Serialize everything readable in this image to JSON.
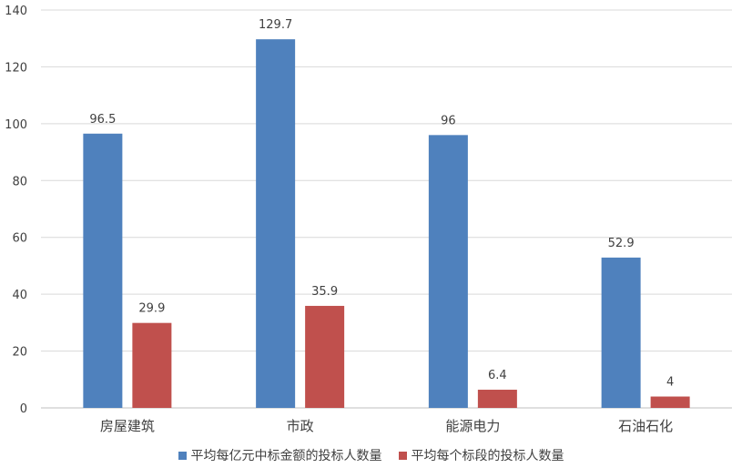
{
  "chart_data": {
    "type": "bar",
    "categories": [
      "房屋建筑",
      "市政",
      "能源电力",
      "石油石化"
    ],
    "series": [
      {
        "name": "平均每亿元中标金额的投标人数量",
        "values": [
          96.5,
          129.7,
          96,
          52.9
        ],
        "color": "#4F81BD"
      },
      {
        "name": "平均每个标段的投标人数量",
        "values": [
          29.9,
          35.9,
          6.4,
          4
        ],
        "color": "#C0504D"
      }
    ],
    "data_labels": [
      [
        "96.5",
        "129.7",
        "96",
        "52.9"
      ],
      [
        "29.9",
        "35.9",
        "6.4",
        "4"
      ]
    ],
    "ylim": [
      0,
      140
    ],
    "yticks": [
      "0",
      "20",
      "40",
      "60",
      "80",
      "100",
      "120",
      "140"
    ],
    "grid": true,
    "legend_position": "bottom"
  }
}
